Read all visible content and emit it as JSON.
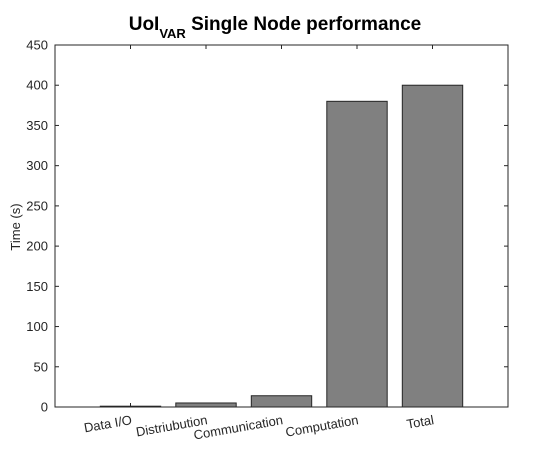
{
  "chart_data": {
    "type": "bar",
    "title": {
      "main": "UoI",
      "subscript": "VAR",
      "rest": " Single Node performance"
    },
    "xlabel": "",
    "ylabel": "Time (s)",
    "categories": [
      "Data I/O",
      "Distriubution",
      "Communication",
      "Computation",
      "Total"
    ],
    "values": [
      1,
      5,
      14,
      380,
      400
    ],
    "ylim": [
      0,
      450
    ],
    "yticks": [
      0,
      50,
      100,
      150,
      200,
      250,
      300,
      350,
      400,
      450
    ],
    "grid": false,
    "legend": "none",
    "colors": {
      "bar_fill": "#808080",
      "bar_edge": "#262626",
      "axis": "#262626"
    }
  }
}
